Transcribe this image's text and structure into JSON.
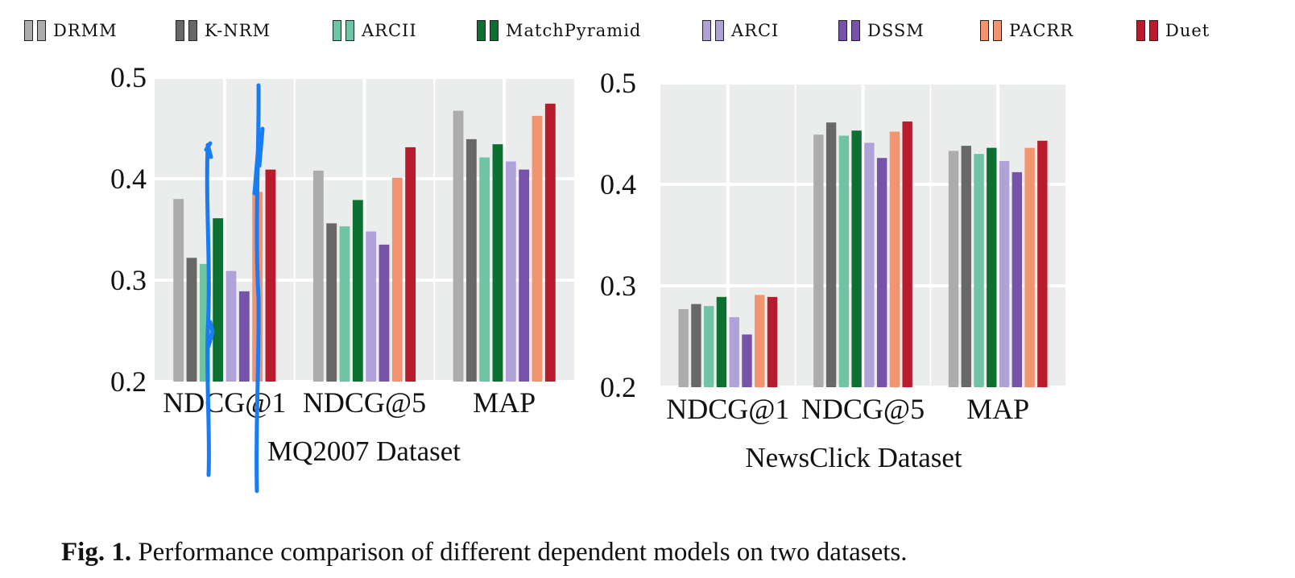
{
  "legend": {
    "items": [
      {
        "label": "DRMM",
        "color": "#acacac"
      },
      {
        "label": "K-NRM",
        "color": "#686868"
      },
      {
        "label": "ARCII",
        "color": "#6fc4a4"
      },
      {
        "label": "MatchPyramid",
        "color": "#0c7030"
      },
      {
        "label": "ARCI",
        "color": "#b0a2d8"
      },
      {
        "label": "DSSM",
        "color": "#7652a8"
      },
      {
        "label": "PACRR",
        "color": "#f29470"
      },
      {
        "label": "Duet",
        "color": "#b81c2c"
      }
    ]
  },
  "caption": {
    "label": "Fig. 1.",
    "text": "Performance comparison of different dependent models on two datasets."
  },
  "chart_data": [
    {
      "type": "bar",
      "title": "",
      "xlabel": "MQ2007 Dataset",
      "ylabel": "",
      "ylim": [
        0.2,
        0.5
      ],
      "yticks": [
        "0.2",
        "0.3",
        "0.4",
        "0.5"
      ],
      "grid": true,
      "categories": [
        "NDCG@1",
        "NDCG@5",
        "MAP"
      ],
      "series": [
        {
          "name": "DRMM",
          "values": [
            0.38,
            0.408,
            0.467
          ]
        },
        {
          "name": "K-NRM",
          "values": [
            0.322,
            0.356,
            0.439
          ]
        },
        {
          "name": "ARCII",
          "values": [
            0.316,
            0.353,
            0.421
          ]
        },
        {
          "name": "MatchPyramid",
          "values": [
            0.361,
            0.379,
            0.434
          ]
        },
        {
          "name": "ARCI",
          "values": [
            0.309,
            0.348,
            0.417
          ]
        },
        {
          "name": "DSSM",
          "values": [
            0.289,
            0.335,
            0.409
          ]
        },
        {
          "name": "PACRR",
          "values": [
            0.387,
            0.401,
            0.462
          ]
        },
        {
          "name": "Duet",
          "values": [
            0.409,
            0.431,
            0.474
          ]
        }
      ]
    },
    {
      "type": "bar",
      "title": "",
      "xlabel": "NewsClick Dataset",
      "ylabel": "",
      "ylim": [
        0.2,
        0.5
      ],
      "yticks": [
        "0.2",
        "0.3",
        "0.4",
        "0.5"
      ],
      "grid": true,
      "categories": [
        "NDCG@1",
        "NDCG@5",
        "MAP"
      ],
      "series": [
        {
          "name": "DRMM",
          "values": [
            0.277,
            0.449,
            0.433
          ]
        },
        {
          "name": "K-NRM",
          "values": [
            0.282,
            0.461,
            0.438
          ]
        },
        {
          "name": "ARCII",
          "values": [
            0.28,
            0.448,
            0.43
          ]
        },
        {
          "name": "MatchPyramid",
          "values": [
            0.289,
            0.453,
            0.436
          ]
        },
        {
          "name": "ARCI",
          "values": [
            0.269,
            0.441,
            0.423
          ]
        },
        {
          "name": "DSSM",
          "values": [
            0.252,
            0.426,
            0.412
          ]
        },
        {
          "name": "PACRR",
          "values": [
            0.291,
            0.452,
            0.436
          ]
        },
        {
          "name": "Duet",
          "values": [
            0.289,
            0.462,
            0.443
          ]
        }
      ]
    }
  ]
}
